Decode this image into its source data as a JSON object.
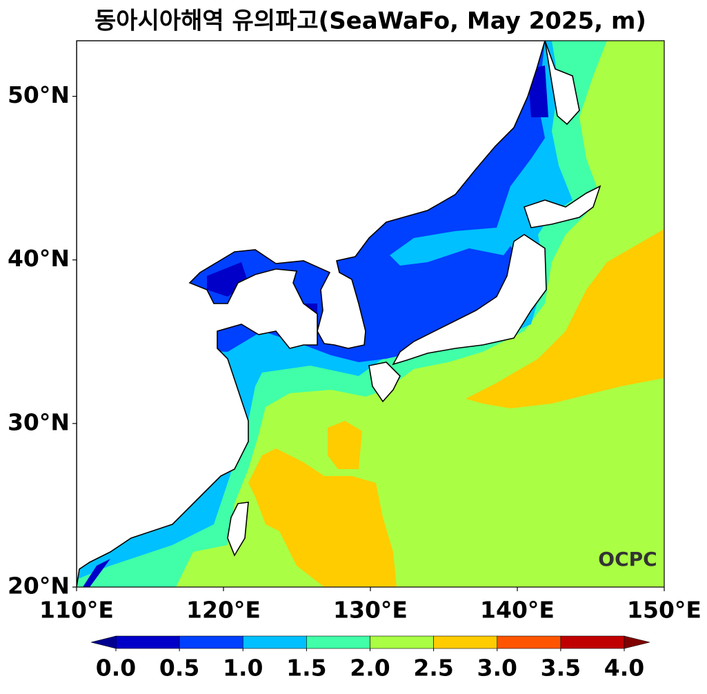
{
  "title": "동아시아해역 유의파고(SeaWaFo, May 2025, m)",
  "map": {
    "lon_range": [
      110,
      150
    ],
    "lat_range": [
      20,
      53.4
    ],
    "lon_ticks": [
      {
        "value": 110,
        "label": "110°E"
      },
      {
        "value": 120,
        "label": "120°E"
      },
      {
        "value": 130,
        "label": "130°E"
      },
      {
        "value": 140,
        "label": "140°E"
      },
      {
        "value": 150,
        "label": "150°E"
      }
    ],
    "lat_ticks": [
      {
        "value": 20,
        "label": "20°N"
      },
      {
        "value": 30,
        "label": "30°N"
      },
      {
        "value": 40,
        "label": "40°N"
      },
      {
        "value": 50,
        "label": "50°N"
      }
    ]
  },
  "colorbar": {
    "levels": [
      {
        "value": 0,
        "label": "0.0"
      },
      {
        "value": 0.5,
        "label": "0.5"
      },
      {
        "value": 1,
        "label": "1.0"
      },
      {
        "value": 1.5,
        "label": "1.5"
      },
      {
        "value": 2,
        "label": "2.0"
      },
      {
        "value": 2.5,
        "label": "2.5"
      },
      {
        "value": 3,
        "label": "3.0"
      },
      {
        "value": 3.5,
        "label": "3.5"
      },
      {
        "value": 4,
        "label": "4.0"
      }
    ],
    "colors": [
      "#0000c8",
      "#0040ff",
      "#00c0ff",
      "#40ffa8",
      "#aaff44",
      "#ffcc00",
      "#ff5500",
      "#c00000"
    ],
    "under_color": "#000090",
    "over_color": "#800000"
  },
  "logo": "OCPC"
}
